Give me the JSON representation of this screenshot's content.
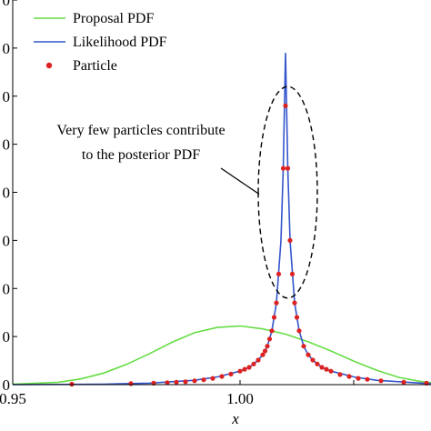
{
  "chart_data": {
    "type": "line",
    "xlabel": "x",
    "ylabel": "",
    "xlim": [
      0.95,
      1.042
    ],
    "ylim": [
      0,
      80
    ],
    "x_ticks": [
      {
        "value": 0.95,
        "label": "0.95"
      },
      {
        "value": 1.0,
        "label": "1.00"
      },
      {
        "value": 1.025,
        "label": ""
      }
    ],
    "y_ticks": [
      {
        "value": 0,
        "label": "0"
      },
      {
        "value": 10,
        "label": "0"
      },
      {
        "value": 20,
        "label": "0"
      },
      {
        "value": 30,
        "label": "0"
      },
      {
        "value": 40,
        "label": "0"
      },
      {
        "value": 50,
        "label": "0"
      },
      {
        "value": 60,
        "label": "0"
      },
      {
        "value": 70,
        "label": "0"
      },
      {
        "value": 80,
        "label": "0"
      }
    ],
    "grid": false,
    "legend_position": "top-left",
    "series": [
      {
        "name": "Proposal PDF",
        "kind": "line",
        "color": "#66dd44",
        "points": [
          [
            0.95,
            0.1
          ],
          [
            0.96,
            0.5
          ],
          [
            0.965,
            1.2
          ],
          [
            0.97,
            2.4
          ],
          [
            0.975,
            4.2
          ],
          [
            0.98,
            6.4
          ],
          [
            0.985,
            8.8
          ],
          [
            0.99,
            10.8
          ],
          [
            0.995,
            11.9
          ],
          [
            1.0,
            12.2
          ],
          [
            1.005,
            11.6
          ],
          [
            1.01,
            10.5
          ],
          [
            1.015,
            8.9
          ],
          [
            1.02,
            7.0
          ],
          [
            1.025,
            4.9
          ],
          [
            1.03,
            3.0
          ],
          [
            1.035,
            1.5
          ],
          [
            1.04,
            0.6
          ],
          [
            1.042,
            0.4
          ]
        ]
      },
      {
        "name": "Likelihood PDF",
        "kind": "line",
        "color": "#3355cc",
        "points": [
          [
            0.95,
            0.0
          ],
          [
            0.97,
            0.1
          ],
          [
            0.98,
            0.3
          ],
          [
            0.99,
            0.9
          ],
          [
            0.995,
            1.6
          ],
          [
            1.0,
            2.8
          ],
          [
            1.002,
            3.6
          ],
          [
            1.004,
            5.1
          ],
          [
            1.005,
            6.2
          ],
          [
            1.006,
            8.0
          ],
          [
            1.007,
            11.2
          ],
          [
            1.008,
            17.0
          ],
          [
            1.009,
            30.0
          ],
          [
            1.0095,
            45.0
          ],
          [
            1.01,
            69.0
          ],
          [
            1.0105,
            45.0
          ],
          [
            1.011,
            30.0
          ],
          [
            1.012,
            17.0
          ],
          [
            1.013,
            11.2
          ],
          [
            1.014,
            8.0
          ],
          [
            1.015,
            6.2
          ],
          [
            1.016,
            5.1
          ],
          [
            1.018,
            3.6
          ],
          [
            1.02,
            2.8
          ],
          [
            1.025,
            1.6
          ],
          [
            1.03,
            0.9
          ],
          [
            1.04,
            0.3
          ],
          [
            1.042,
            0.2
          ]
        ]
      },
      {
        "name": "Particle",
        "kind": "scatter",
        "color": "#dd2222",
        "points": [
          [
            0.963,
            0.1
          ],
          [
            0.976,
            0.2
          ],
          [
            0.981,
            0.3
          ],
          [
            0.984,
            0.4
          ],
          [
            0.986,
            0.5
          ],
          [
            0.988,
            0.6
          ],
          [
            0.99,
            0.8
          ],
          [
            0.992,
            1.0
          ],
          [
            0.994,
            1.3
          ],
          [
            0.996,
            1.7
          ],
          [
            0.998,
            2.2
          ],
          [
            1.0,
            2.8
          ],
          [
            1.001,
            3.2
          ],
          [
            1.002,
            3.6
          ],
          [
            1.003,
            4.3
          ],
          [
            1.004,
            5.1
          ],
          [
            1.005,
            6.2
          ],
          [
            1.0055,
            7.0
          ],
          [
            1.006,
            8.0
          ],
          [
            1.0065,
            9.5
          ],
          [
            1.007,
            11.2
          ],
          [
            1.0075,
            14.0
          ],
          [
            1.008,
            17.0
          ],
          [
            1.0085,
            23.0
          ],
          [
            1.0095,
            45.0
          ],
          [
            1.01,
            58.0
          ],
          [
            1.0105,
            45.0
          ],
          [
            1.011,
            30.0
          ],
          [
            1.0115,
            23.0
          ],
          [
            1.012,
            17.0
          ],
          [
            1.0125,
            14.0
          ],
          [
            1.013,
            11.2
          ],
          [
            1.014,
            8.0
          ],
          [
            1.015,
            6.2
          ],
          [
            1.016,
            5.1
          ],
          [
            1.017,
            4.3
          ],
          [
            1.018,
            3.6
          ],
          [
            1.019,
            3.2
          ],
          [
            1.02,
            2.8
          ],
          [
            1.022,
            2.1
          ],
          [
            1.024,
            1.7
          ],
          [
            1.026,
            1.3
          ],
          [
            1.028,
            1.1
          ],
          [
            1.031,
            0.8
          ],
          [
            1.036,
            0.5
          ],
          [
            1.041,
            0.3
          ]
        ]
      }
    ],
    "annotation": {
      "lines": [
        "Very few particles contribute",
        "to the posterior PDF"
      ],
      "ellipse": {
        "center_x": 1.0105,
        "center_y": 40,
        "radius_x": 0.0065,
        "radius_y": 22
      }
    }
  }
}
